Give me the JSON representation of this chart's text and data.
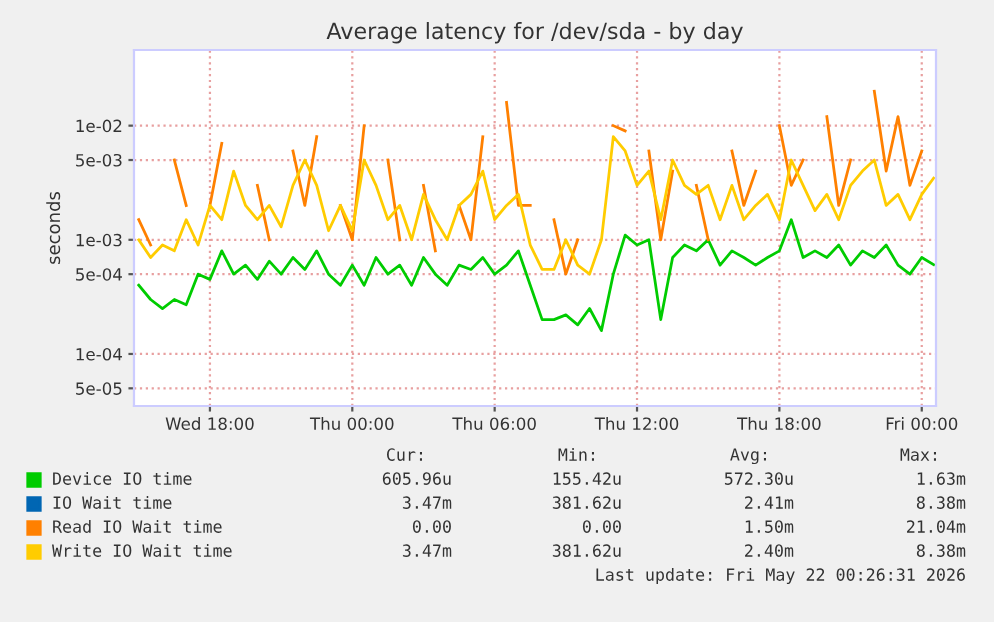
{
  "chart_data": {
    "type": "line",
    "title": "Average latency for /dev/sda - by day",
    "ylabel": "seconds",
    "x": [
      "2026-05-20T15:00",
      "2026-05-20T15:30",
      "2026-05-20T16:00",
      "2026-05-20T16:30",
      "2026-05-20T17:00",
      "2026-05-20T17:30",
      "2026-05-20T18:00",
      "2026-05-20T18:30",
      "2026-05-20T19:00",
      "2026-05-20T19:30",
      "2026-05-20T20:00",
      "2026-05-20T20:30",
      "2026-05-20T21:00",
      "2026-05-20T21:30",
      "2026-05-20T22:00",
      "2026-05-20T22:30",
      "2026-05-20T23:00",
      "2026-05-20T23:30",
      "2026-05-21T00:00",
      "2026-05-21T00:30",
      "2026-05-21T01:00",
      "2026-05-21T01:30",
      "2026-05-21T02:00",
      "2026-05-21T02:30",
      "2026-05-21T03:00",
      "2026-05-21T03:30",
      "2026-05-21T04:00",
      "2026-05-21T04:30",
      "2026-05-21T05:00",
      "2026-05-21T05:30",
      "2026-05-21T06:00",
      "2026-05-21T06:30",
      "2026-05-21T07:00",
      "2026-05-21T07:30",
      "2026-05-21T08:00",
      "2026-05-21T08:30",
      "2026-05-21T09:00",
      "2026-05-21T09:30",
      "2026-05-21T10:00",
      "2026-05-21T10:30",
      "2026-05-21T11:00",
      "2026-05-21T11:30",
      "2026-05-21T12:00",
      "2026-05-21T12:30",
      "2026-05-21T13:00",
      "2026-05-21T13:30",
      "2026-05-21T14:00",
      "2026-05-21T14:30",
      "2026-05-21T15:00",
      "2026-05-21T15:30",
      "2026-05-21T16:00",
      "2026-05-21T16:30",
      "2026-05-21T17:00",
      "2026-05-21T17:30",
      "2026-05-21T18:00",
      "2026-05-21T18:30",
      "2026-05-21T19:00",
      "2026-05-21T19:30",
      "2026-05-21T20:00",
      "2026-05-21T20:30",
      "2026-05-21T21:00",
      "2026-05-21T21:30",
      "2026-05-21T22:00",
      "2026-05-21T22:30",
      "2026-05-21T23:00",
      "2026-05-21T23:30",
      "2026-05-22T00:00",
      "2026-05-22T00:30"
    ],
    "xlim": [
      "2026-05-20T14:48",
      "2026-05-22T00:36"
    ],
    "xticks": [
      {
        "value": "2026-05-20T18:00",
        "label": "Wed 18:00"
      },
      {
        "value": "2026-05-21T00:00",
        "label": "Thu 00:00"
      },
      {
        "value": "2026-05-21T06:00",
        "label": "Thu 06:00"
      },
      {
        "value": "2026-05-21T12:00",
        "label": "Thu 12:00"
      },
      {
        "value": "2026-05-21T18:00",
        "label": "Thu 18:00"
      },
      {
        "value": "2026-05-22T00:00",
        "label": "Fri 00:00"
      }
    ],
    "log": true,
    "ylim": [
      3.5e-05,
      0.046
    ],
    "yticks": [
      {
        "value": 5e-05,
        "label": "5e-05"
      },
      {
        "value": 0.0001,
        "label": "1e-04"
      },
      {
        "value": 0.0005,
        "label": "5e-04"
      },
      {
        "value": 0.001,
        "label": "1e-03"
      },
      {
        "value": 0.005,
        "label": "5e-03"
      },
      {
        "value": 0.01,
        "label": "1e-02"
      }
    ],
    "grid": true,
    "legend": "bottom",
    "series": [
      {
        "name": "Device IO time",
        "color": "#00cc00",
        "values": [
          0.0004,
          0.0003,
          0.00025,
          0.0003,
          0.00027,
          0.0005,
          0.00045,
          0.0008,
          0.0005,
          0.0006,
          0.00045,
          0.00065,
          0.0005,
          0.0007,
          0.00055,
          0.0008,
          0.0005,
          0.0004,
          0.0006,
          0.0004,
          0.0007,
          0.0005,
          0.0006,
          0.0004,
          0.0007,
          0.0005,
          0.0004,
          0.0006,
          0.00055,
          0.0007,
          0.0005,
          0.0006,
          0.0008,
          0.0004,
          0.0002,
          0.0002,
          0.00022,
          0.00018,
          0.00025,
          0.00016,
          0.0005,
          0.0011,
          0.0009,
          0.001,
          0.0002,
          0.0007,
          0.0009,
          0.0008,
          0.001,
          0.0006,
          0.0008,
          0.0007,
          0.0006,
          0.0007,
          0.0008,
          0.0015,
          0.0007,
          0.0008,
          0.0007,
          0.0009,
          0.0006,
          0.0008,
          0.0007,
          0.0009,
          0.0006,
          0.0005,
          0.0007,
          0.000606
        ]
      },
      {
        "name": "IO Wait time",
        "color": "#0066b3",
        "values": [
          null,
          null,
          null,
          null,
          null,
          null,
          null,
          null,
          null,
          null,
          null,
          null,
          null,
          null,
          null,
          null,
          null,
          null,
          null,
          null,
          null,
          null,
          null,
          null,
          null,
          null,
          null,
          null,
          null,
          null,
          null,
          null,
          null,
          null,
          null,
          null,
          null,
          null,
          null,
          null,
          null,
          null,
          null,
          null,
          null,
          null,
          null,
          null,
          null,
          null,
          null,
          null,
          null,
          null,
          null,
          null,
          null,
          null,
          null,
          null,
          null,
          null,
          null,
          null,
          null,
          null,
          null,
          null
        ]
      },
      {
        "name": "Read IO Wait time",
        "color": "#ff8000",
        "values": [
          0.0015,
          0.0009,
          null,
          0.005,
          0.002,
          null,
          0.002,
          0.007,
          null,
          null,
          0.003,
          0.001,
          null,
          0.006,
          0.002,
          0.008,
          null,
          0.002,
          0.001,
          0.01,
          null,
          0.005,
          0.001,
          null,
          0.003,
          0.0008,
          null,
          0.002,
          0.001,
          0.008,
          null,
          0.016,
          0.002,
          0.002,
          null,
          0.0015,
          0.0005,
          0.001,
          null,
          null,
          0.01,
          0.009,
          null,
          0.006,
          0.001,
          0.004,
          null,
          0.003,
          0.001,
          null,
          0.006,
          0.002,
          0.004,
          null,
          0.01,
          0.003,
          0.005,
          null,
          0.012,
          0.002,
          0.005,
          null,
          0.02,
          0.004,
          0.012,
          0.003,
          0.006,
          null
        ]
      },
      {
        "name": "Write IO Wait time",
        "color": "#ffcc00",
        "values": [
          0.001,
          0.0007,
          0.0009,
          0.0008,
          0.0015,
          0.0009,
          0.002,
          0.0015,
          0.004,
          0.002,
          0.0015,
          0.002,
          0.0013,
          0.003,
          0.005,
          0.003,
          0.0012,
          0.002,
          0.0012,
          0.005,
          0.003,
          0.0015,
          0.002,
          0.001,
          0.0025,
          0.0015,
          0.001,
          0.002,
          0.0025,
          0.004,
          0.0015,
          0.002,
          0.0025,
          0.0009,
          0.00055,
          0.00055,
          0.001,
          0.0006,
          0.0005,
          0.001,
          0.008,
          0.006,
          0.003,
          0.004,
          0.0015,
          0.005,
          0.003,
          0.0025,
          0.003,
          0.0015,
          0.003,
          0.0015,
          0.002,
          0.0025,
          0.0015,
          0.005,
          0.003,
          0.0018,
          0.0025,
          0.0015,
          0.003,
          0.004,
          0.005,
          0.002,
          0.0025,
          0.0015,
          0.0025,
          0.00347
        ]
      }
    ],
    "annotations": [
      "Cur:",
      "Min:",
      "Avg:",
      "Max:",
      "605.96u",
      "155.42u",
      "572.30u",
      "1.63m",
      "3.47m",
      "381.62u",
      "2.41m",
      "8.38m",
      "0.00",
      "0.00",
      "1.50m",
      "21.04m",
      "3.47m",
      "381.62u",
      "2.40m",
      "8.38m",
      "Last update: Fri May 22 00:26:31 2026"
    ]
  }
}
